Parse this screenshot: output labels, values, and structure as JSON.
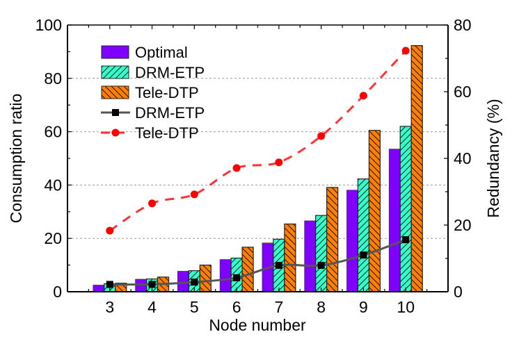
{
  "chart_data": {
    "type": "bar",
    "title": "",
    "xlabel": "Node number",
    "ylabel": "Consumption ratio",
    "y2label": "Redundancy (%)",
    "categories": [
      "3",
      "4",
      "5",
      "6",
      "7",
      "8",
      "9",
      "10"
    ],
    "ylim": [
      0,
      100
    ],
    "y2lim": [
      0,
      80
    ],
    "yticks": [
      "0",
      "20",
      "40",
      "60",
      "80",
      "100"
    ],
    "y2ticks": [
      "0",
      "20",
      "40",
      "60",
      "80"
    ],
    "grid": "horizontal dashed at major left ticks",
    "legend_position": "top-left",
    "series": [
      {
        "name": "Optimal",
        "kind": "bar",
        "axis": "left",
        "color": "#7f00ff",
        "pattern": "none",
        "values": [
          2.5,
          4.7,
          7.7,
          12.1,
          18.3,
          26.6,
          38.1,
          53.5
        ]
      },
      {
        "name": "DRM-ETP",
        "kind": "bar",
        "axis": "left",
        "color": "#33ffcc",
        "pattern": "forward-hatch",
        "values": [
          3.0,
          4.8,
          7.9,
          12.6,
          19.7,
          28.6,
          42.3,
          62.0
        ]
      },
      {
        "name": "Tele-DTP",
        "kind": "bar",
        "axis": "left",
        "color": "#ff7f00",
        "pattern": "back-hatch",
        "values": [
          3.2,
          5.5,
          10.0,
          16.7,
          25.4,
          39.1,
          60.5,
          92.3
        ]
      },
      {
        "name": "DRM-ETP",
        "kind": "line",
        "axis": "right",
        "color": "#555555",
        "marker": "square",
        "marker_color": "#000000",
        "dash": "solid",
        "values": [
          2.2,
          2.2,
          2.9,
          4.2,
          7.9,
          7.9,
          11.0,
          15.6
        ]
      },
      {
        "name": "Tele-DTP",
        "kind": "line",
        "axis": "right",
        "color": "#ff3333",
        "marker": "circle",
        "marker_color": "#ff0000",
        "dash": "dashed",
        "values": [
          18.3,
          26.5,
          29.2,
          37.1,
          38.8,
          46.7,
          58.8,
          72.3
        ]
      }
    ]
  }
}
